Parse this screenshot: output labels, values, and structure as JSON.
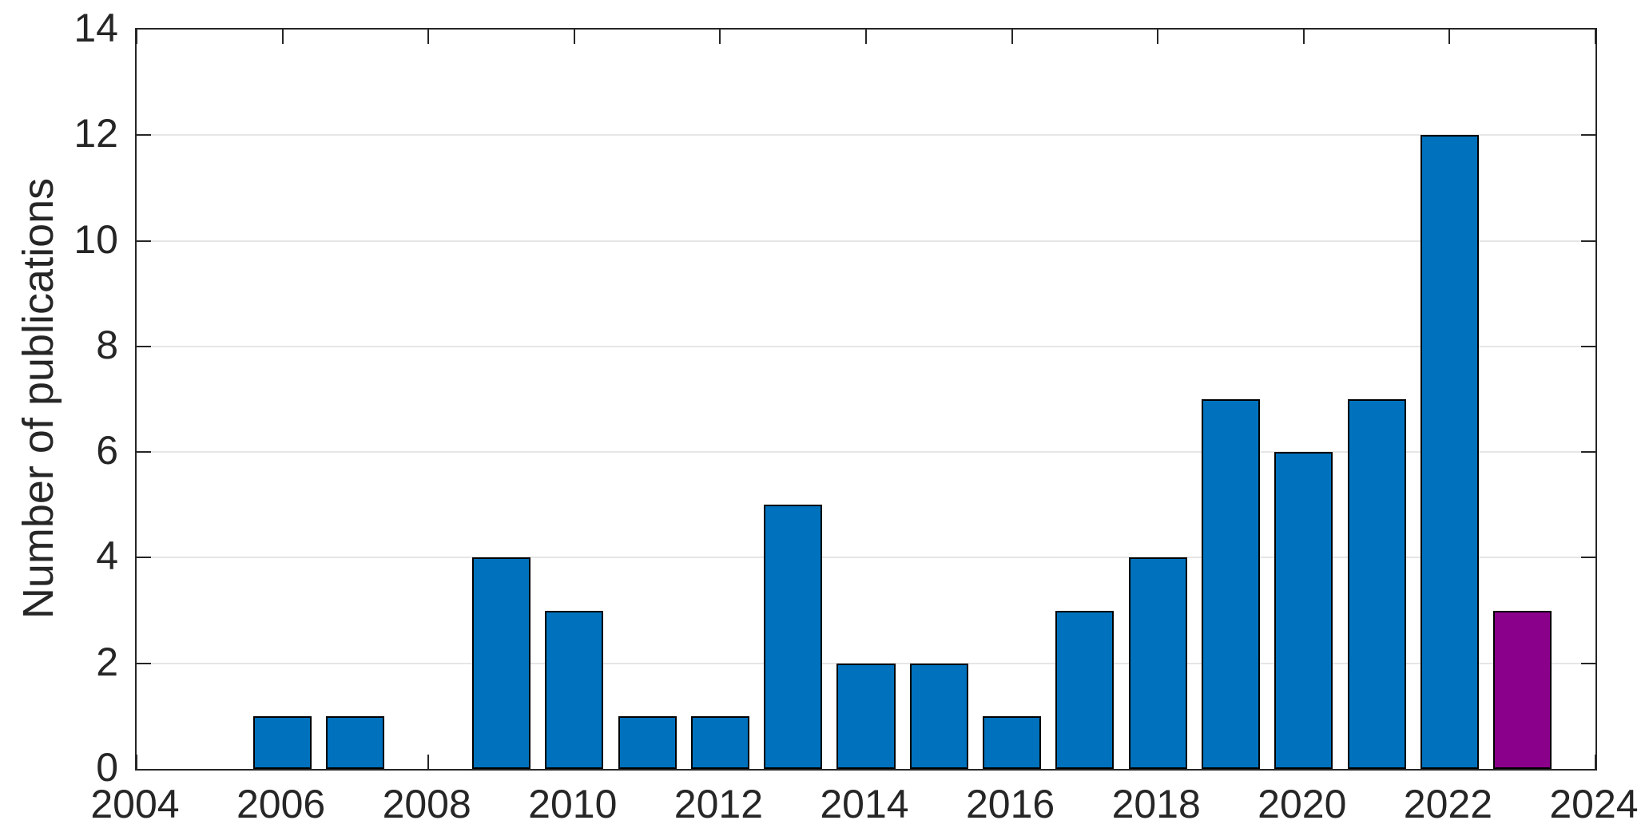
{
  "chart_data": {
    "type": "bar",
    "title": "",
    "xlabel": "",
    "ylabel": "Number of publications",
    "x": [
      2004,
      2005,
      2006,
      2007,
      2008,
      2009,
      2010,
      2011,
      2012,
      2013,
      2014,
      2015,
      2016,
      2017,
      2018,
      2019,
      2020,
      2021,
      2022,
      2023
    ],
    "values": [
      0,
      0,
      1,
      1,
      0,
      4,
      3,
      1,
      1,
      5,
      2,
      2,
      1,
      3,
      4,
      7,
      6,
      7,
      12,
      3
    ],
    "highlight_year": 2023,
    "xlim": [
      2004,
      2024
    ],
    "ylim": [
      0,
      14
    ],
    "xticks": [
      2004,
      2006,
      2008,
      2010,
      2012,
      2014,
      2016,
      2018,
      2020,
      2022,
      2024
    ],
    "yticks": [
      0,
      2,
      4,
      6,
      8,
      10,
      12,
      14
    ],
    "bar_width_years": 0.8,
    "grid": "horizontal",
    "legend": "none",
    "colors": {
      "bar_default": "#0072BD",
      "bar_highlight": "#8B008B",
      "bar_edge": "#000000",
      "axis": "#262626",
      "grid": "#e6e6e6",
      "background": "#ffffff"
    }
  }
}
